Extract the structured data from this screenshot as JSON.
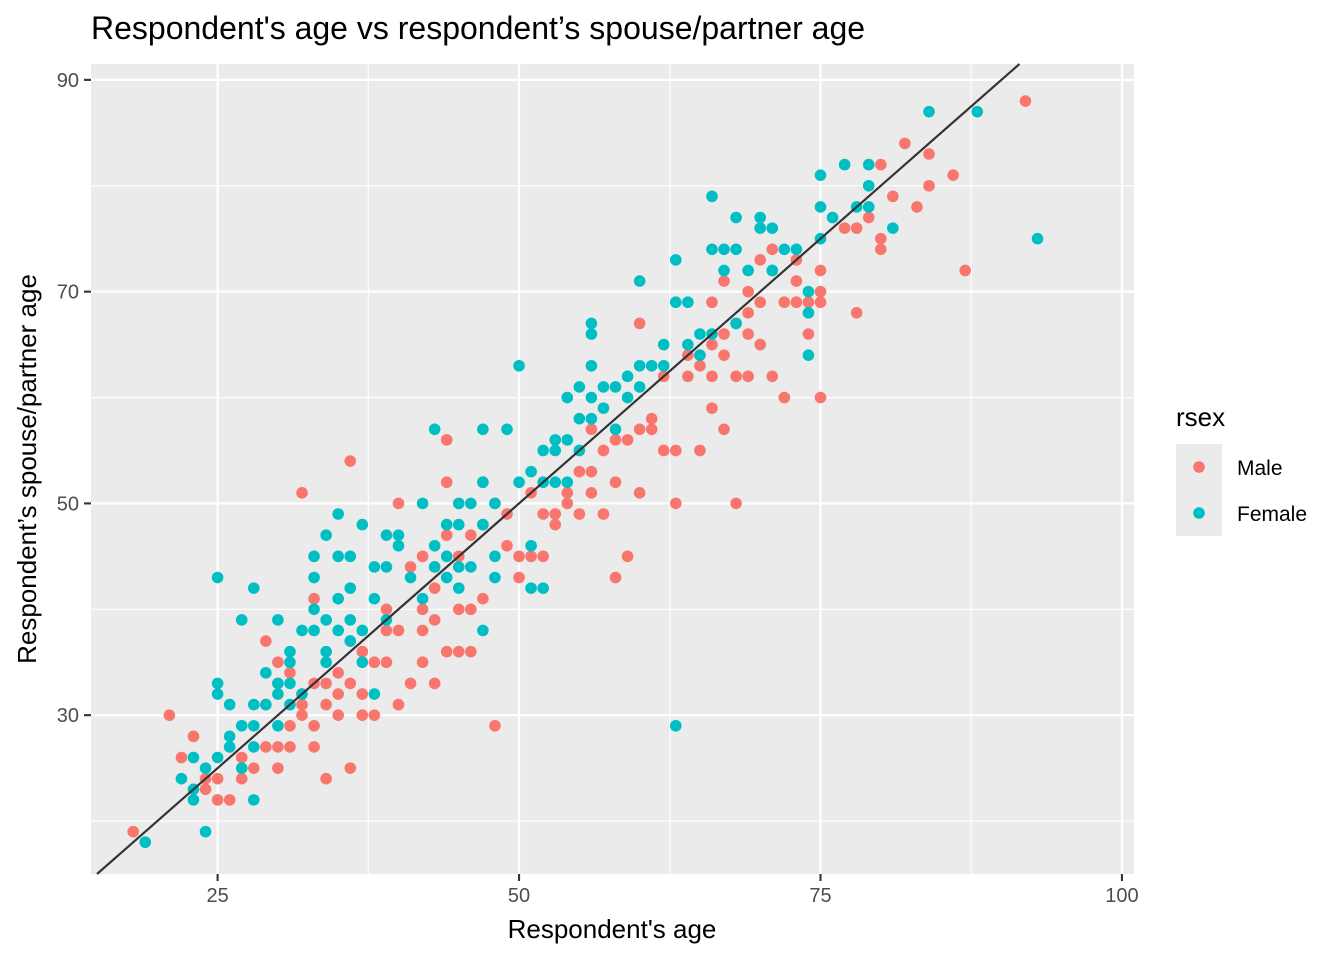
{
  "chart_data": {
    "type": "scatter",
    "title": "Respondent's age vs respondent’s spouse/partner age",
    "xlabel": "Respondent's age",
    "ylabel": "Respondent’s spouse/partner age",
    "xlim": [
      14.5,
      101
    ],
    "ylim": [
      15,
      91.5
    ],
    "x_ticks": [
      25,
      50,
      75,
      100
    ],
    "y_ticks": [
      30,
      50,
      70,
      90
    ],
    "grid": true,
    "legend": {
      "title": "rsex",
      "position": "right",
      "entries": [
        {
          "label": "Male",
          "color": "#F8766D"
        },
        {
          "label": "Female",
          "color": "#00BFC4"
        }
      ]
    },
    "reference_line": {
      "type": "identity",
      "slope": 1,
      "intercept": 0,
      "color": "#333333"
    },
    "series": [
      {
        "name": "Male",
        "color": "#F8766D",
        "points": [
          [
            18,
            19
          ],
          [
            21,
            30
          ],
          [
            22,
            26
          ],
          [
            23,
            28
          ],
          [
            24,
            23
          ],
          [
            24,
            24
          ],
          [
            25,
            22
          ],
          [
            25,
            24
          ],
          [
            26,
            22
          ],
          [
            27,
            26
          ],
          [
            27,
            24
          ],
          [
            28,
            25
          ],
          [
            29,
            27
          ],
          [
            29,
            31
          ],
          [
            29,
            37
          ],
          [
            30,
            35
          ],
          [
            30,
            33
          ],
          [
            30,
            27
          ],
          [
            30,
            25
          ],
          [
            31,
            29
          ],
          [
            31,
            27
          ],
          [
            31,
            34
          ],
          [
            32,
            51
          ],
          [
            32,
            32
          ],
          [
            32,
            31
          ],
          [
            32,
            30
          ],
          [
            33,
            41
          ],
          [
            33,
            33
          ],
          [
            33,
            29
          ],
          [
            33,
            27
          ],
          [
            34,
            33
          ],
          [
            34,
            31
          ],
          [
            34,
            24
          ],
          [
            35,
            34
          ],
          [
            35,
            32
          ],
          [
            35,
            30
          ],
          [
            36,
            54
          ],
          [
            36,
            37
          ],
          [
            36,
            33
          ],
          [
            36,
            25
          ],
          [
            37,
            36
          ],
          [
            37,
            32
          ],
          [
            37,
            30
          ],
          [
            38,
            35
          ],
          [
            38,
            30
          ],
          [
            39,
            40
          ],
          [
            39,
            38
          ],
          [
            39,
            35
          ],
          [
            40,
            50
          ],
          [
            40,
            38
          ],
          [
            40,
            31
          ],
          [
            41,
            44
          ],
          [
            41,
            33
          ],
          [
            42,
            45
          ],
          [
            42,
            40
          ],
          [
            42,
            38
          ],
          [
            42,
            35
          ],
          [
            43,
            44
          ],
          [
            43,
            42
          ],
          [
            43,
            39
          ],
          [
            43,
            33
          ],
          [
            44,
            56
          ],
          [
            44,
            52
          ],
          [
            44,
            47
          ],
          [
            44,
            36
          ],
          [
            45,
            50
          ],
          [
            45,
            45
          ],
          [
            45,
            40
          ],
          [
            45,
            36
          ],
          [
            46,
            47
          ],
          [
            46,
            40
          ],
          [
            46,
            36
          ],
          [
            47,
            52
          ],
          [
            47,
            48
          ],
          [
            47,
            41
          ],
          [
            48,
            50
          ],
          [
            48,
            29
          ],
          [
            49,
            49
          ],
          [
            49,
            46
          ],
          [
            50,
            45
          ],
          [
            50,
            43
          ],
          [
            51,
            51
          ],
          [
            51,
            45
          ],
          [
            52,
            49
          ],
          [
            52,
            45
          ],
          [
            53,
            49
          ],
          [
            53,
            48
          ],
          [
            54,
            51
          ],
          [
            54,
            50
          ],
          [
            55,
            53
          ],
          [
            55,
            49
          ],
          [
            56,
            57
          ],
          [
            56,
            53
          ],
          [
            56,
            51
          ],
          [
            57,
            55
          ],
          [
            57,
            49
          ],
          [
            58,
            56
          ],
          [
            58,
            52
          ],
          [
            58,
            43
          ],
          [
            59,
            56
          ],
          [
            59,
            45
          ],
          [
            60,
            57
          ],
          [
            60,
            51
          ],
          [
            60,
            67
          ],
          [
            61,
            58
          ],
          [
            61,
            57
          ],
          [
            62,
            55
          ],
          [
            62,
            62
          ],
          [
            63,
            55
          ],
          [
            63,
            50
          ],
          [
            64,
            64
          ],
          [
            64,
            62
          ],
          [
            65,
            55
          ],
          [
            65,
            64
          ],
          [
            65,
            63
          ],
          [
            66,
            65
          ],
          [
            66,
            62
          ],
          [
            66,
            59
          ],
          [
            66,
            69
          ],
          [
            67,
            57
          ],
          [
            67,
            66
          ],
          [
            67,
            64
          ],
          [
            67,
            71
          ],
          [
            68,
            67
          ],
          [
            68,
            62
          ],
          [
            68,
            50
          ],
          [
            69,
            70
          ],
          [
            69,
            68
          ],
          [
            69,
            66
          ],
          [
            69,
            62
          ],
          [
            70,
            69
          ],
          [
            70,
            65
          ],
          [
            70,
            73
          ],
          [
            71,
            74
          ],
          [
            71,
            72
          ],
          [
            71,
            62
          ],
          [
            72,
            69
          ],
          [
            72,
            60
          ],
          [
            73,
            73
          ],
          [
            73,
            71
          ],
          [
            73,
            69
          ],
          [
            74,
            69
          ],
          [
            74,
            66
          ],
          [
            75,
            72
          ],
          [
            75,
            70
          ],
          [
            75,
            69
          ],
          [
            75,
            60
          ],
          [
            77,
            76
          ],
          [
            78,
            76
          ],
          [
            78,
            68
          ],
          [
            79,
            77
          ],
          [
            80,
            82
          ],
          [
            80,
            75
          ],
          [
            80,
            74
          ],
          [
            81,
            79
          ],
          [
            82,
            84
          ],
          [
            83,
            78
          ],
          [
            84,
            83
          ],
          [
            84,
            80
          ],
          [
            86,
            81
          ],
          [
            87,
            72
          ],
          [
            92,
            88
          ]
        ]
      },
      {
        "name": "Female",
        "color": "#00BFC4",
        "points": [
          [
            19,
            18
          ],
          [
            22,
            24
          ],
          [
            23,
            26
          ],
          [
            23,
            23
          ],
          [
            23,
            22
          ],
          [
            24,
            25
          ],
          [
            24,
            19
          ],
          [
            25,
            43
          ],
          [
            25,
            33
          ],
          [
            25,
            32
          ],
          [
            25,
            26
          ],
          [
            26,
            31
          ],
          [
            26,
            28
          ],
          [
            26,
            27
          ],
          [
            27,
            39
          ],
          [
            27,
            29
          ],
          [
            27,
            25
          ],
          [
            28,
            42
          ],
          [
            28,
            31
          ],
          [
            28,
            29
          ],
          [
            28,
            27
          ],
          [
            28,
            22
          ],
          [
            29,
            34
          ],
          [
            29,
            31
          ],
          [
            30,
            39
          ],
          [
            30,
            33
          ],
          [
            30,
            32
          ],
          [
            30,
            29
          ],
          [
            31,
            36
          ],
          [
            31,
            35
          ],
          [
            31,
            33
          ],
          [
            31,
            31
          ],
          [
            32,
            38
          ],
          [
            32,
            32
          ],
          [
            33,
            45
          ],
          [
            33,
            43
          ],
          [
            33,
            40
          ],
          [
            33,
            38
          ],
          [
            34,
            47
          ],
          [
            34,
            39
          ],
          [
            34,
            36
          ],
          [
            34,
            35
          ],
          [
            35,
            49
          ],
          [
            35,
            45
          ],
          [
            35,
            41
          ],
          [
            35,
            38
          ],
          [
            36,
            45
          ],
          [
            36,
            42
          ],
          [
            36,
            39
          ],
          [
            36,
            37
          ],
          [
            37,
            48
          ],
          [
            37,
            38
          ],
          [
            37,
            35
          ],
          [
            38,
            44
          ],
          [
            38,
            41
          ],
          [
            38,
            32
          ],
          [
            39,
            47
          ],
          [
            39,
            44
          ],
          [
            39,
            39
          ],
          [
            40,
            47
          ],
          [
            40,
            46
          ],
          [
            41,
            43
          ],
          [
            42,
            50
          ],
          [
            42,
            41
          ],
          [
            43,
            57
          ],
          [
            43,
            46
          ],
          [
            43,
            44
          ],
          [
            44,
            48
          ],
          [
            44,
            45
          ],
          [
            44,
            43
          ],
          [
            45,
            50
          ],
          [
            45,
            48
          ],
          [
            45,
            44
          ],
          [
            45,
            42
          ],
          [
            46,
            50
          ],
          [
            46,
            44
          ],
          [
            47,
            57
          ],
          [
            47,
            52
          ],
          [
            47,
            48
          ],
          [
            47,
            38
          ],
          [
            48,
            50
          ],
          [
            48,
            45
          ],
          [
            48,
            43
          ],
          [
            49,
            57
          ],
          [
            50,
            63
          ],
          [
            50,
            52
          ],
          [
            51,
            53
          ],
          [
            51,
            46
          ],
          [
            51,
            42
          ],
          [
            52,
            55
          ],
          [
            52,
            52
          ],
          [
            52,
            42
          ],
          [
            53,
            56
          ],
          [
            53,
            55
          ],
          [
            53,
            52
          ],
          [
            54,
            60
          ],
          [
            54,
            56
          ],
          [
            54,
            52
          ],
          [
            55,
            61
          ],
          [
            55,
            58
          ],
          [
            55,
            55
          ],
          [
            56,
            67
          ],
          [
            56,
            66
          ],
          [
            56,
            63
          ],
          [
            56,
            60
          ],
          [
            56,
            58
          ],
          [
            57,
            61
          ],
          [
            57,
            59
          ],
          [
            58,
            61
          ],
          [
            58,
            57
          ],
          [
            59,
            62
          ],
          [
            59,
            60
          ],
          [
            60,
            71
          ],
          [
            60,
            63
          ],
          [
            60,
            61
          ],
          [
            61,
            63
          ],
          [
            62,
            65
          ],
          [
            62,
            63
          ],
          [
            63,
            73
          ],
          [
            63,
            69
          ],
          [
            63,
            29
          ],
          [
            64,
            69
          ],
          [
            64,
            65
          ],
          [
            65,
            66
          ],
          [
            65,
            64
          ],
          [
            66,
            79
          ],
          [
            66,
            74
          ],
          [
            66,
            66
          ],
          [
            67,
            74
          ],
          [
            67,
            72
          ],
          [
            68,
            77
          ],
          [
            68,
            74
          ],
          [
            68,
            67
          ],
          [
            69,
            72
          ],
          [
            70,
            77
          ],
          [
            70,
            76
          ],
          [
            71,
            76
          ],
          [
            71,
            72
          ],
          [
            72,
            74
          ],
          [
            73,
            74
          ],
          [
            74,
            70
          ],
          [
            74,
            68
          ],
          [
            74,
            64
          ],
          [
            75,
            81
          ],
          [
            75,
            78
          ],
          [
            75,
            75
          ],
          [
            76,
            77
          ],
          [
            77,
            82
          ],
          [
            78,
            78
          ],
          [
            79,
            82
          ],
          [
            79,
            80
          ],
          [
            79,
            78
          ],
          [
            81,
            76
          ],
          [
            84,
            87
          ],
          [
            88,
            87
          ],
          [
            93,
            75
          ]
        ]
      }
    ]
  }
}
